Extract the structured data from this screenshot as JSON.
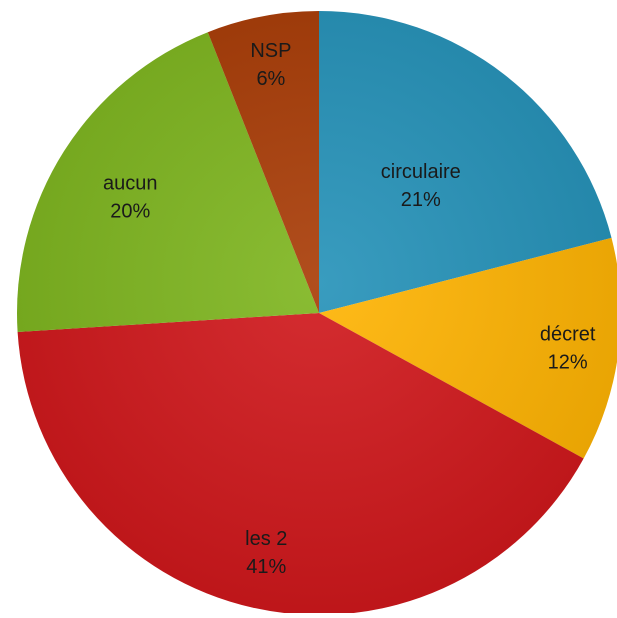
{
  "chart_data": {
    "type": "pie",
    "title": "",
    "slices": [
      {
        "label": "circulaire",
        "value": 21,
        "value_label": "21%",
        "color": "#2391b8"
      },
      {
        "label": "décret",
        "value": 12,
        "value_label": "12%",
        "color": "#ffb300"
      },
      {
        "label": "les 2",
        "value": 41,
        "value_label": "41%",
        "color": "#d0161a"
      },
      {
        "label": "aucun",
        "value": 20,
        "value_label": "20%",
        "color": "#7db51d"
      },
      {
        "label": "NSP",
        "value": 6,
        "value_label": "6%",
        "color": "#a83a04"
      }
    ],
    "start_angle_deg": 0,
    "direction": "clockwise",
    "legend": "none"
  }
}
